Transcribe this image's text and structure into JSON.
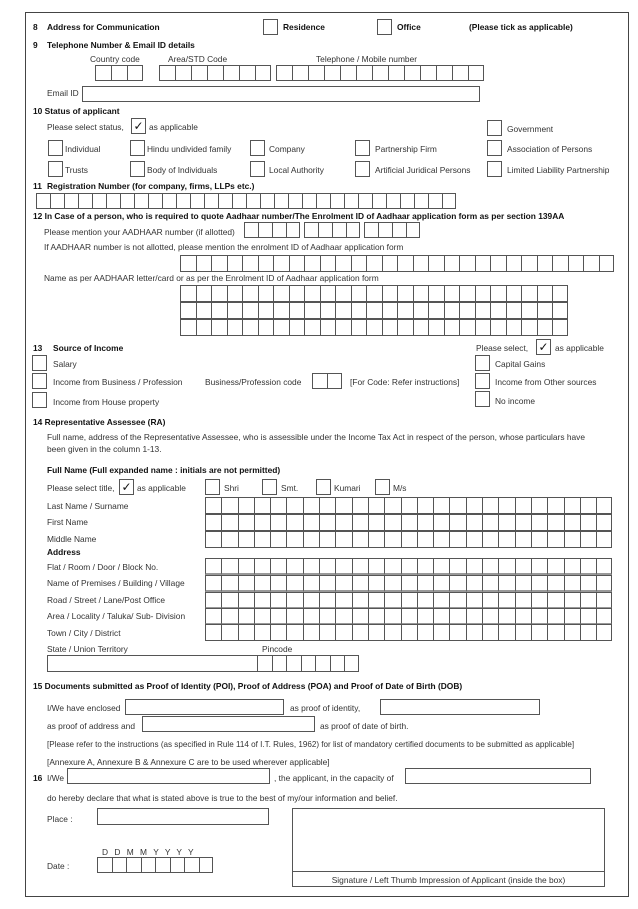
{
  "s8": {
    "num": "8",
    "label": "Address for Communication",
    "residence": "Residence",
    "office": "Office",
    "note": "(Please tick as applicable)"
  },
  "s9": {
    "num": "9",
    "label": "Telephone Number & Email ID details",
    "country_code": "Country code",
    "area_code": "Area/STD Code",
    "phone": "Telephone / Mobile number",
    "email_label": "Email ID",
    "email_value": ""
  },
  "s10": {
    "label": "10 Status of applicant",
    "select_prefix": "Please select status,",
    "tick": "✓",
    "select_suffix": "as applicable",
    "options": [
      "Individual",
      "Hindu undivided family",
      "Company",
      "Partnership Firm",
      "Association of Persons",
      "Trusts",
      "Body of Individuals",
      "Local Authority",
      "Artificial Juridical Persons",
      "Limited Liability Partnership",
      "Government"
    ]
  },
  "s11": {
    "num": "11",
    "label": "Registration Number (for company, firms, LLPs etc.)"
  },
  "s12": {
    "label": "12 In Case of a person, who is required to quote Aadhaar number/The Enrolment ID of Aadhaar application form as per section 139AA",
    "aadhaar": "Please mention your AADHAAR number (if allotted)",
    "enrolment": "If AADHAAR number is not allotted, please mention the enrolment ID of Aadhaar application form",
    "name": "Name as per AADHAAR letter/card or as per the Enrolment ID of Aadhaar application form"
  },
  "s13": {
    "num": "13",
    "label": "Source of Income",
    "select_prefix": "Please select,",
    "tick": "✓",
    "select_suffix": "as applicable",
    "salary": "Salary",
    "business": "Income from Business / Profession",
    "business_code": "Business/Profession code",
    "code_note": "[For Code: Refer instructions]",
    "house": "Income from House property",
    "capital_gains": "Capital Gains",
    "other_sources": "Income from Other sources",
    "no_income": "No income"
  },
  "s14": {
    "label": "14 Representative Assessee (RA)",
    "desc1": "Full name, address of the Representative Assessee, who is assessible under the Income Tax Act in respect of the person, whose particulars have",
    "desc2": "been given in the column 1-13.",
    "fullname": "Full Name (Full expanded name : initials are not permitted)",
    "select_prefix": "Please select title,",
    "tick": "✓",
    "select_suffix": "as applicable",
    "titles": [
      "Shri",
      "Smt.",
      "Kumari",
      "M/s"
    ],
    "last": "Last Name / Surname",
    "first": "First Name",
    "middle": "Middle Name",
    "address": "Address",
    "flat": "Flat / Room / Door / Block No.",
    "premises": "Name of Premises / Building / Village",
    "road": "Road / Street / Lane/Post Office",
    "area": "Area / Locality / Taluka/ Sub- Division",
    "town": "Town / City / District",
    "state": "State / Union Territory",
    "pincode": "Pincode"
  },
  "s15": {
    "label": "15 Documents submitted as Proof of Identity (POI), Proof of Address (POA) and Proof of Date of Birth (DOB)",
    "enclosed": "I/We have enclosed",
    "poi": "as proof of identity,",
    "poa": "as proof of address and",
    "dob": "as proof of date of birth.",
    "note1": "[Please refer to the instructions (as specified in Rule 114 of I.T. Rules, 1962) for list of mandatory certified documents to be submitted as applicable]",
    "note2": "[Annexure A, Annexure B & Annexure C are to be used wherever applicable]"
  },
  "s16": {
    "num": "16",
    "iwe": "I/We",
    "capacity": ", the applicant, in the capacity of",
    "declare": "do hereby declare that what is stated above is true to the best of my/our information and belief.",
    "place": "Place :",
    "date": "Date :",
    "date_format": "D D M M Y Y Y Y",
    "signature": "Signature / Left Thumb Impression of  Applicant (inside the box)"
  }
}
